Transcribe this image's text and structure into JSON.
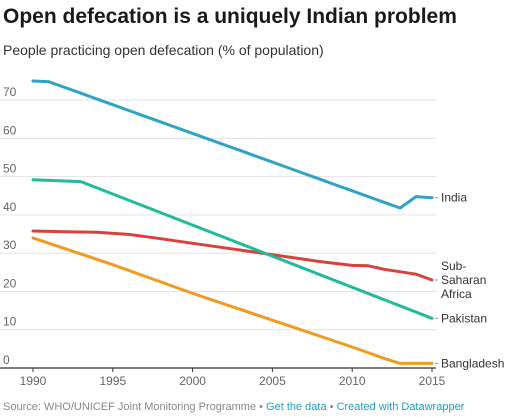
{
  "chart_data": {
    "type": "line",
    "title": "Open defecation is a uniquely Indian problem",
    "subtitle": "People practicing open defecation (% of population)",
    "xlim": [
      1990,
      2015
    ],
    "ylim": [
      0,
      75
    ],
    "x_ticks": [
      "1990",
      "1995",
      "2000",
      "2005",
      "2010",
      "2015"
    ],
    "y_ticks": [
      "0",
      "10",
      "20",
      "30",
      "40",
      "50",
      "60",
      "70"
    ],
    "grid": true,
    "series": [
      {
        "name": "India",
        "label_lines": [
          "India"
        ],
        "color": "#2fa3c6",
        "x": [
          1990,
          1991,
          1992,
          1993,
          1994,
          1995,
          1996,
          1997,
          1998,
          1999,
          2000,
          2001,
          2002,
          2003,
          2004,
          2005,
          2006,
          2007,
          2008,
          2009,
          2010,
          2011,
          2012,
          2013,
          2014,
          2015
        ],
        "values": [
          75,
          74.8,
          73.3,
          71.8,
          70.3,
          68.8,
          67.3,
          65.8,
          64.3,
          62.8,
          61.3,
          59.8,
          58.3,
          56.8,
          55.3,
          53.8,
          52.3,
          50.8,
          49.3,
          47.8,
          46.3,
          44.8,
          43.3,
          41.8,
          44.8,
          44.5
        ]
      },
      {
        "name": "Sub-Saharan Africa",
        "label_lines": [
          "Sub-",
          "Saharan",
          "Africa"
        ],
        "color": "#d9413b",
        "x": [
          1990,
          1992,
          1994,
          1996,
          1998,
          2000,
          2002,
          2004,
          2006,
          2008,
          2010,
          2011,
          2012,
          2014,
          2015
        ],
        "values": [
          35.8,
          35.6,
          35.5,
          34.9,
          33.8,
          32.6,
          31.4,
          30.2,
          29,
          27.8,
          26.8,
          26.7,
          25.8,
          24.5,
          23
        ]
      },
      {
        "name": "Pakistan",
        "label_lines": [
          "Pakistan"
        ],
        "color": "#1fbb9a",
        "x": [
          1990,
          1993,
          2015
        ],
        "values": [
          49.2,
          48.7,
          13
        ]
      },
      {
        "name": "Bangladesh",
        "label_lines": [
          "Bangladesh"
        ],
        "color": "#f09a1f",
        "x": [
          1990,
          1995,
          2000,
          2005,
          2010,
          2012,
          2013,
          2014,
          2015
        ],
        "values": [
          34,
          27,
          19.5,
          12.5,
          5.5,
          2.5,
          1.2,
          1.2,
          1.2
        ]
      }
    ]
  },
  "footer": {
    "source": "Source: WHO/UNICEF Joint Monitoring Programme",
    "sep1": " • ",
    "get_data": "Get the data",
    "sep2": " • ",
    "created": "Created with Datawrapper"
  }
}
